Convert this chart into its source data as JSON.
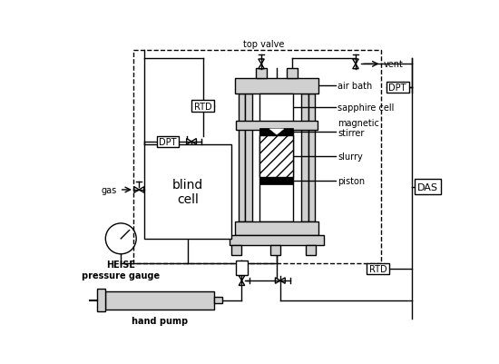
{
  "bg": "#ffffff",
  "lc": "#000000",
  "gray": "#b0b0b0",
  "lgray": "#d0d0d0",
  "labels": {
    "top_valve": "top valve",
    "vent": "vent",
    "air_bath": "air bath",
    "sapphire_cell": "sapphire cell",
    "magnetic_stirrer": "magnetic\nstirrer",
    "slurry": "slurry",
    "piston": "piston",
    "DAS": "DAS",
    "RTD_top": "RTD",
    "RTD_bot": "RTD",
    "DPT_left": "DPT",
    "DPT_right": "DPT",
    "blind_cell": "blind\ncell",
    "gas": "gas",
    "HEISE": "HEISE\npressure gauge",
    "hand_pump": "hand pump"
  },
  "fig_w": 5.5,
  "fig_h": 4.02,
  "dpi": 100
}
